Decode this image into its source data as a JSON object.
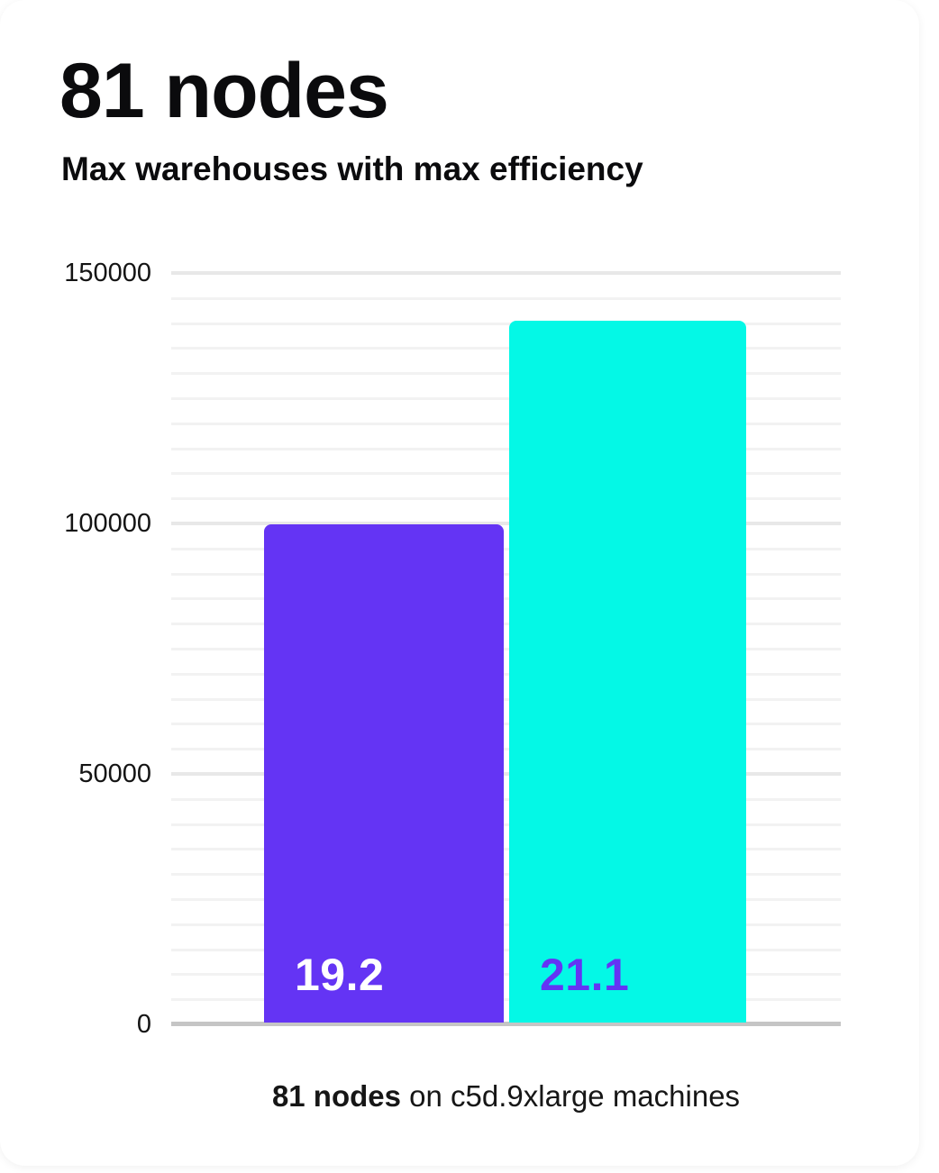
{
  "header": {
    "title": "81 nodes",
    "subtitle": "Max warehouses with max efficiency"
  },
  "caption": {
    "bold": "81 nodes",
    "rest": " on c5d.9xlarge machines"
  },
  "colors": {
    "bar_purple": "#6434f4",
    "bar_cyan": "#04f8e6",
    "label_on_purple": "#ffffff",
    "label_on_cyan": "#6434f4",
    "grid_minor": "#f2f2f2",
    "grid_major": "#e8e8e8",
    "axis_line": "#c5c5c5",
    "text": "#0b0b0d"
  },
  "chart_data": {
    "type": "bar",
    "title": "81 nodes",
    "subtitle": "Max warehouses with max efficiency",
    "caption": "81 nodes on c5d.9xlarge machines",
    "ylim": [
      0,
      150000
    ],
    "yticks": [
      0,
      50000,
      100000,
      150000
    ],
    "ytick_labels": [
      "0",
      "50000",
      "100000",
      "150000"
    ],
    "grid": {
      "minor_step": 5000,
      "major_step": 50000,
      "enabled": true
    },
    "legend": "none",
    "xlabel": "",
    "ylabel": "",
    "series": [
      {
        "value": 99500,
        "data_label": "19.2",
        "color": "#6434f4",
        "label_color": "#ffffff"
      },
      {
        "value": 140100,
        "data_label": "21.1",
        "color": "#04f8e6",
        "label_color": "#6434f4"
      }
    ]
  }
}
